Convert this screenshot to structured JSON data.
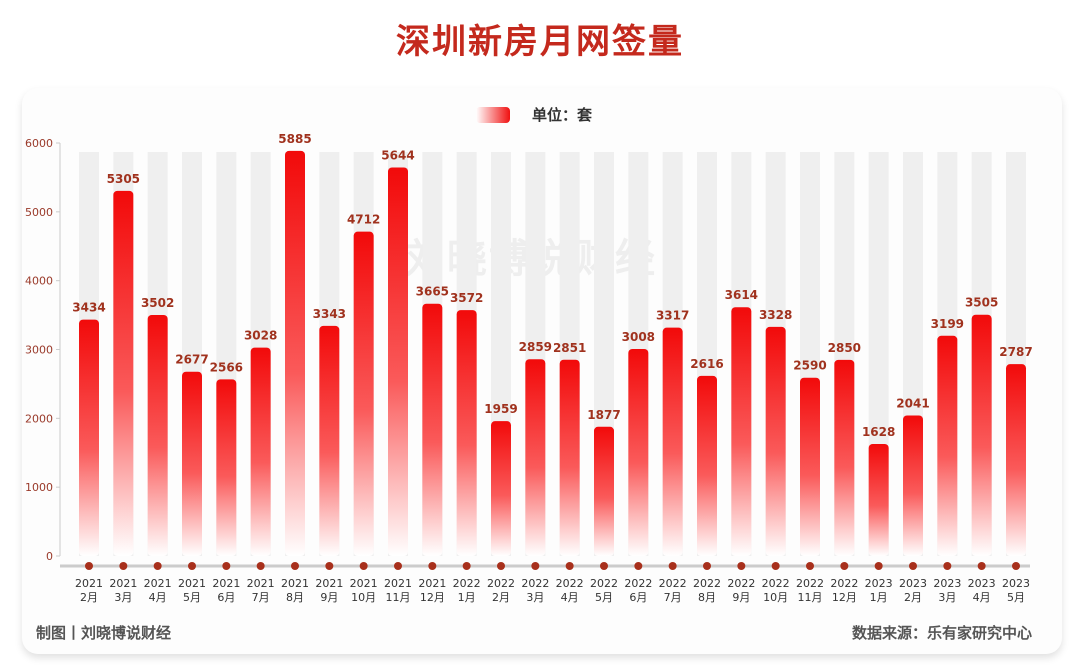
{
  "chart_data": {
    "type": "bar",
    "title": "深圳新房月网签量",
    "legend": {
      "label": "单位：套",
      "position": "top-center"
    },
    "categories": [
      [
        "2021",
        "2月"
      ],
      [
        "2021",
        "3月"
      ],
      [
        "2021",
        "4月"
      ],
      [
        "2021",
        "5月"
      ],
      [
        "2021",
        "6月"
      ],
      [
        "2021",
        "7月"
      ],
      [
        "2021",
        "8月"
      ],
      [
        "2021",
        "9月"
      ],
      [
        "2021",
        "10月"
      ],
      [
        "2021",
        "11月"
      ],
      [
        "2021",
        "12月"
      ],
      [
        "2022",
        "1月"
      ],
      [
        "2022",
        "2月"
      ],
      [
        "2022",
        "3月"
      ],
      [
        "2022",
        "4月"
      ],
      [
        "2022",
        "5月"
      ],
      [
        "2022",
        "6月"
      ],
      [
        "2022",
        "7月"
      ],
      [
        "2022",
        "8月"
      ],
      [
        "2022",
        "9月"
      ],
      [
        "2022",
        "10月"
      ],
      [
        "2022",
        "11月"
      ],
      [
        "2022",
        "12月"
      ],
      [
        "2023",
        "1月"
      ],
      [
        "2023",
        "2月"
      ],
      [
        "2023",
        "3月"
      ],
      [
        "2023",
        "4月"
      ],
      [
        "2023",
        "5月"
      ]
    ],
    "values": [
      3434,
      5305,
      3502,
      2677,
      2566,
      3028,
      5885,
      3343,
      4712,
      5644,
      3665,
      3572,
      1959,
      2859,
      2851,
      1877,
      3008,
      3317,
      2616,
      3614,
      3328,
      2590,
      2850,
      1628,
      2041,
      3199,
      3505,
      2787
    ],
    "ylim": [
      0,
      6000
    ],
    "yticks": [
      "0",
      "1000",
      "2000",
      "3000",
      "4000",
      "5000",
      "6000"
    ],
    "grid": false,
    "colors": {
      "bar_top": "#f20a0a",
      "bar_bottom": "#ffffff",
      "label": "#a0321e",
      "axis_tick": "#9a3a2a",
      "background_bar": "#efefef",
      "dot": "#a8301c"
    }
  },
  "footer": {
    "credit": "制图丨刘晓博说财经",
    "source": "数据来源：乐有家研究中心"
  },
  "watermark": "刘晓博说财经"
}
